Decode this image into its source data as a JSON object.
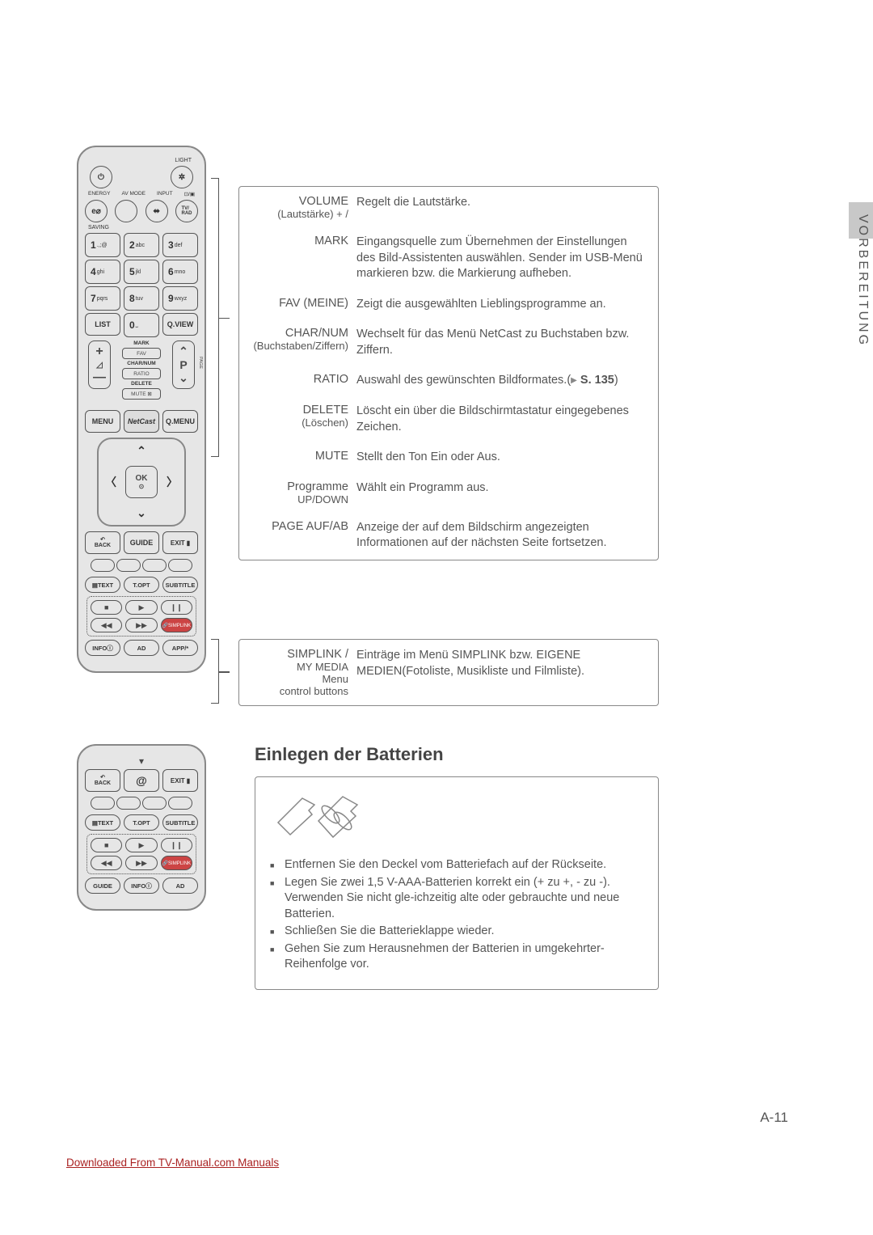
{
  "sideTab": "VORBEREITUNG",
  "pageNumber": "A-11",
  "footerLink": "Downloaded From TV-Manual.com Manuals",
  "remote": {
    "topLabels": {
      "light": "LIGHT",
      "energy": "ENERGY",
      "avmode": "AV MODE",
      "input": "INPUT",
      "saving": "SAVING",
      "tvrad": "TV/\nRAD"
    },
    "powerIcon": "⏻",
    "lightIcon": "✲",
    "energyIcon": "e⌀",
    "inputIcon": "⬌",
    "screenIcon": "⊡/▣",
    "numpad": [
      {
        "n": "1",
        "sub": ".,;@"
      },
      {
        "n": "2",
        "sub": "abc"
      },
      {
        "n": "3",
        "sub": "def"
      },
      {
        "n": "4",
        "sub": "ghi"
      },
      {
        "n": "5",
        "sub": "jkl"
      },
      {
        "n": "6",
        "sub": "mno"
      },
      {
        "n": "7",
        "sub": "pqrs"
      },
      {
        "n": "8",
        "sub": "tuv"
      },
      {
        "n": "9",
        "sub": "wxyz"
      }
    ],
    "list": "LIST",
    "zero": "0",
    "zeroSub": "⎵",
    "qview": "Q.VIEW",
    "mark": "MARK",
    "fav": "FAV",
    "charnum": "CHAR/NUM",
    "ratio": "RATIO",
    "delete": "DELETE",
    "mute": "MUTE ⊠",
    "plus": "+",
    "minus": "—",
    "triUp": "◿",
    "pageLbl": "PAGE",
    "p": "P",
    "pUp": "⌃",
    "pDown": "⌄",
    "menu": "MENU",
    "netcast": "NetCast",
    "qmenu": "Q.MENU",
    "ok": "OK",
    "okDot": "⊙",
    "back": "BACK",
    "backIcon": "↶",
    "guide": "GUIDE",
    "exit": "EXIT",
    "exitIcon": "▮",
    "text": "▤TEXT",
    "topt": "T.OPT",
    "subtitle": "SUBTITLE",
    "stop": "■",
    "play": "▶",
    "pause": "❙❙",
    "rew": "◀◀",
    "ff": "▶▶",
    "simplink": "🔗SIMPLINK",
    "info": "INFOⓘ",
    "ad": "AD",
    "app": "APP/*",
    "at": "@"
  },
  "desc1": [
    {
      "label": "VOLUME",
      "sub": "(Lautstärke) + /",
      "text": "Regelt die Lautstärke."
    },
    {
      "label": "MARK",
      "sub": "",
      "text": "Eingangsquelle zum Übernehmen der Einstellungen des Bild-Assistenten auswählen. Sender im USB-Menü markieren bzw. die Markierung aufheben."
    },
    {
      "label": "FAV (MEINE)",
      "sub": "",
      "text": "Zeigt die ausgewählten Lieblingsprogramme an."
    },
    {
      "label": "CHAR/NUM",
      "sub": "(Buchstaben/Ziffern)",
      "text": "Wechselt für das Menü NetCast zu Buchstaben bzw. Ziffern."
    },
    {
      "label": "RATIO",
      "sub": "",
      "text": "Auswahl des gewünschten Bildformates.",
      "ref": "S. 135",
      "hasRef": true
    },
    {
      "label": "DELETE",
      "sub": "(Löschen)",
      "text": "Löscht ein über die Bildschirmtastatur eingegebenes Zeichen."
    },
    {
      "label": "MUTE",
      "sub": "",
      "text": "Stellt den Ton Ein oder Aus."
    },
    {
      "label": "Programme",
      "sub": "UP/DOWN",
      "text": "Wählt ein Programm aus."
    },
    {
      "label": "PAGE AUF/AB",
      "sub": "",
      "text": "Anzeige der auf dem Bildschirm angezeigten Informationen auf der nächsten Seite fortsetzen."
    }
  ],
  "desc2": [
    {
      "label": "SIMPLINK /",
      "sub": "MY MEDIA",
      "sub2": "Menu",
      "sub3": "control buttons",
      "text": "Einträge im Menü SIMPLINK bzw. EIGENE MEDIEN(Fotoliste, Musikliste und Filmliste)."
    }
  ],
  "batteries": {
    "title": "Einlegen der Batterien",
    "items": [
      "Entfernen Sie den Deckel vom Batteriefach auf der Rückseite.",
      "Legen Sie zwei 1,5 V-AAA-Batterien korrekt ein (+ zu +, - zu -). Verwenden Sie nicht gle-ichzeitig alte oder gebrauchte und neue Batterien.",
      "Schließen Sie die Batterieklappe wieder.",
      "Gehen Sie zum Herausnehmen der Batterien in umgekehrter-Reihenfolge vor."
    ]
  }
}
